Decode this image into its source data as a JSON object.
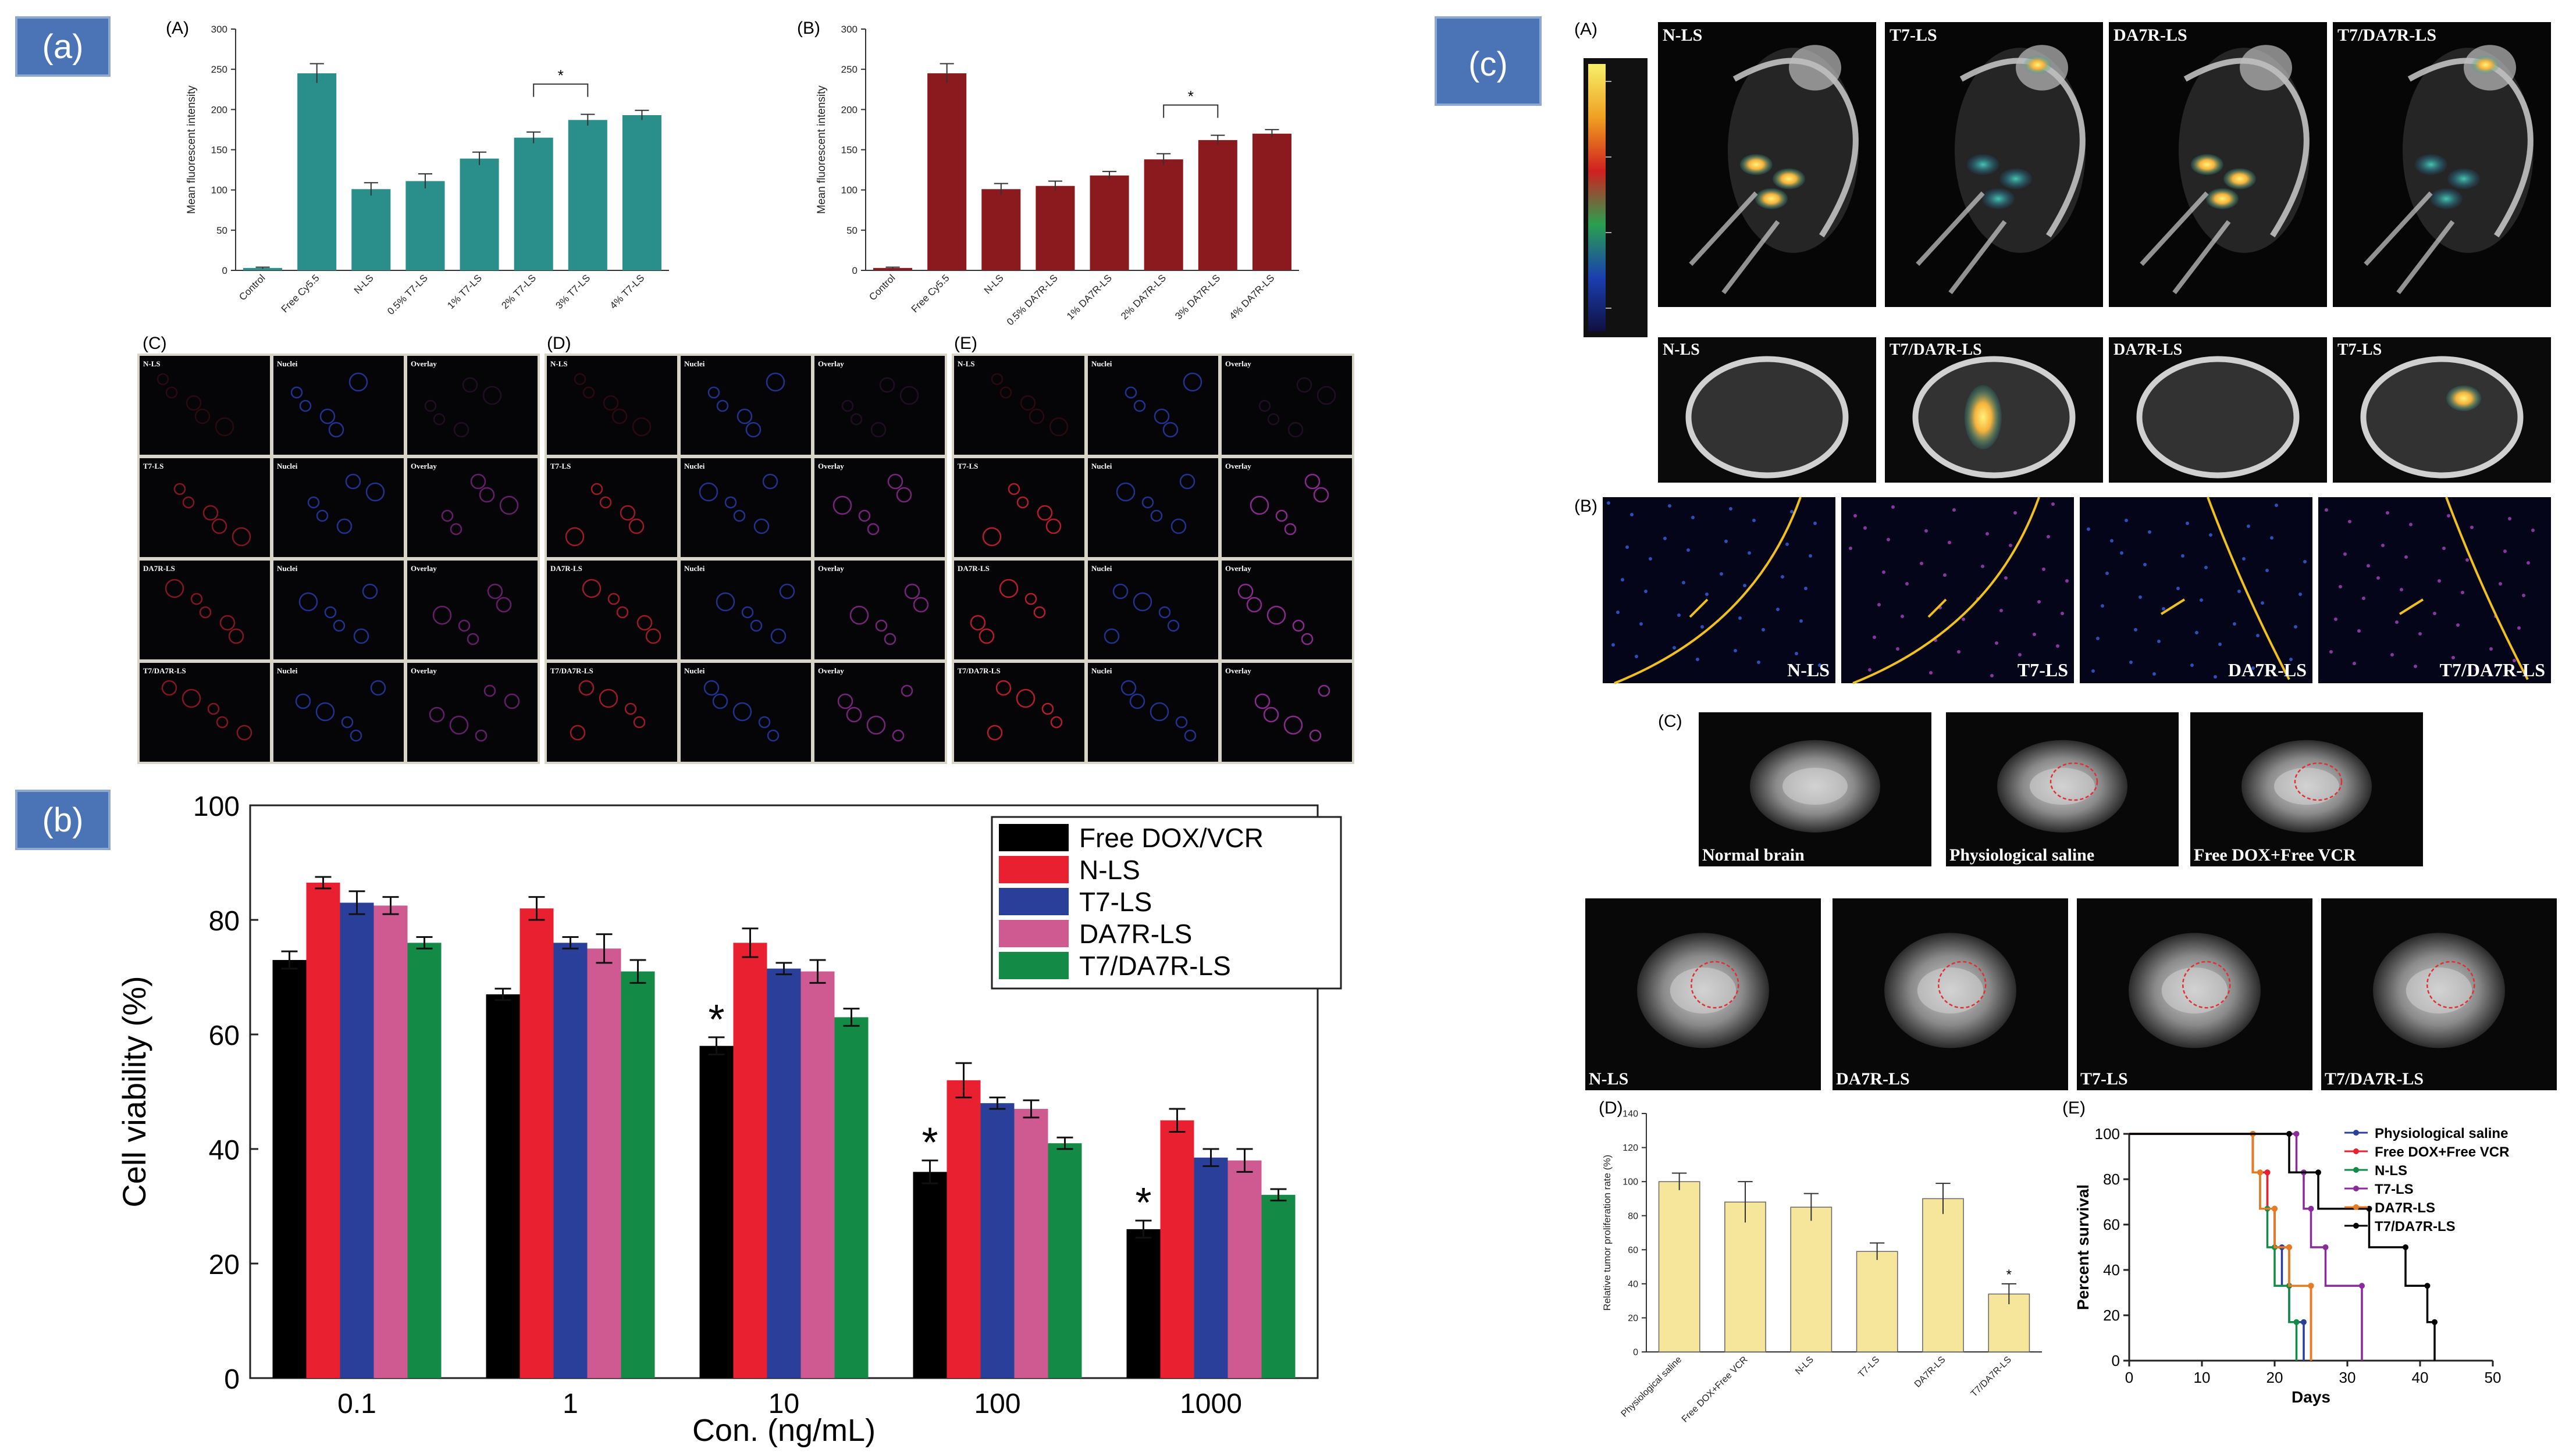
{
  "panel_badges": {
    "a": "(a)",
    "b": "(b)",
    "c": "(c)"
  },
  "panel_a": {
    "letter_A": "(A)",
    "letter_B": "(B)",
    "letter_C": "(C)",
    "letter_D": "(D)",
    "letter_E": "(E)",
    "micro_labels": [
      "N-LS",
      "Nuclei",
      "Overlay",
      "T7-LS",
      "DA7R-LS",
      "T7/DA7R-LS"
    ]
  },
  "panel_c": {
    "letter_A": "(A)",
    "letter_B": "(B)",
    "letter_C": "(C)",
    "letter_D": "(D)",
    "letter_E": "(E)",
    "ct_row1": [
      "N-LS",
      "T7-LS",
      "DA7R-LS",
      "T7/DA7R-LS"
    ],
    "ct_row2": [
      "N-LS",
      "T7/DA7R-LS",
      "DA7R-LS",
      "T7-LS"
    ],
    "fluor_row": [
      "N-LS",
      "T7-LS",
      "DA7R-LS",
      "T7/DA7R-LS"
    ],
    "mri_row1": [
      "Normal brain",
      "Physiological saline",
      "Free DOX+Free VCR"
    ],
    "mri_row2": [
      "N-LS",
      "DA7R-LS",
      "T7-LS",
      "T7/DA7R-LS"
    ]
  },
  "chart_data": [
    {
      "id": "aA",
      "type": "bar",
      "ylabel": "Mean fluorescent intensity",
      "ylim": [
        0,
        300
      ],
      "yticks": [
        0,
        50,
        100,
        150,
        200,
        250,
        300
      ],
      "categories": [
        "Control",
        "Free Cy5.5",
        "N-LS",
        "0.5% T7-LS",
        "1% T7-LS",
        "2% T7-LS",
        "3% T7-LS",
        "4% T7-LS"
      ],
      "values": [
        3,
        245,
        101,
        111,
        139,
        165,
        187,
        193
      ],
      "errors": [
        1,
        12,
        8,
        9,
        8,
        7,
        7,
        6
      ],
      "color": "#2a8f8a",
      "significance": {
        "from": 5,
        "to": 6,
        "label": "*"
      }
    },
    {
      "id": "aB",
      "type": "bar",
      "ylabel": "Mean fluorescent intensity",
      "ylim": [
        0,
        300
      ],
      "yticks": [
        0,
        50,
        100,
        150,
        200,
        250,
        300
      ],
      "categories": [
        "Control",
        "Free Cy5.5",
        "N-LS",
        "0.5% DA7R-LS",
        "1% DA7R-LS",
        "2% DA7R-LS",
        "3% DA7R-LS",
        "4% DA7R-LS"
      ],
      "values": [
        3,
        245,
        101,
        105,
        118,
        138,
        162,
        170
      ],
      "errors": [
        1,
        12,
        7,
        6,
        5,
        7,
        6,
        5
      ],
      "color": "#8b1a1e",
      "significance": {
        "from": 5,
        "to": 6,
        "label": "*"
      }
    },
    {
      "id": "b",
      "type": "bar",
      "ylabel": "Cell viability (%)",
      "xlabel": "Con. (ng/mL)",
      "ylim": [
        0,
        100
      ],
      "yticks": [
        0,
        20,
        40,
        60,
        80,
        100
      ],
      "categories": [
        "0.1",
        "1",
        "10",
        "100",
        "1000"
      ],
      "legend_position": "top-right",
      "series": [
        {
          "name": "Free DOX/VCR",
          "color": "#000000",
          "values": [
            73,
            67,
            58,
            36,
            26
          ],
          "errors": [
            1.5,
            1,
            1.5,
            2,
            1.5
          ]
        },
        {
          "name": "N-LS",
          "color": "#e8202f",
          "values": [
            86.5,
            82,
            76,
            52,
            45
          ],
          "errors": [
            1,
            2,
            2.5,
            3,
            2
          ]
        },
        {
          "name": "T7-LS",
          "color": "#2a3f9a",
          "values": [
            83,
            76,
            71.5,
            48,
            38.5
          ],
          "errors": [
            2,
            1,
            1,
            1,
            1.5
          ]
        },
        {
          "name": "DA7R-LS",
          "color": "#cf5a92",
          "values": [
            82.5,
            75,
            71,
            47,
            38
          ],
          "errors": [
            1.5,
            2.5,
            2,
            1.5,
            2
          ]
        },
        {
          "name": "T7/DA7R-LS",
          "color": "#138a46",
          "values": [
            76,
            71,
            63,
            41,
            32
          ],
          "errors": [
            1,
            2,
            1.5,
            1,
            1
          ]
        }
      ],
      "stars": [
        {
          "category": 2,
          "series": 0,
          "label": "*"
        },
        {
          "category": 3,
          "series": 0,
          "label": "*"
        },
        {
          "category": 4,
          "series": 0,
          "label": "*"
        }
      ]
    },
    {
      "id": "cD",
      "type": "bar",
      "ylabel": "Relative tumor proliferation rate (%)",
      "ylim": [
        0,
        140
      ],
      "yticks": [
        0,
        20,
        40,
        60,
        80,
        100,
        120,
        140
      ],
      "categories": [
        "Physiological saline",
        "Free DOX+Free VCR",
        "N-LS",
        "T7-LS",
        "DA7R-LS",
        "T7/DA7R-LS"
      ],
      "values": [
        100,
        88,
        85,
        59,
        90,
        34
      ],
      "errors": [
        5,
        12,
        8,
        5,
        9,
        6
      ],
      "color": "#f6e69c",
      "star": {
        "index": 5,
        "label": "*"
      }
    },
    {
      "id": "cE",
      "type": "line",
      "ylabel": "Percent survival",
      "xlabel": "Days",
      "xlim": [
        0,
        50
      ],
      "ylim": [
        0,
        100
      ],
      "xticks": [
        0,
        10,
        20,
        30,
        40,
        50
      ],
      "yticks": [
        0,
        20,
        40,
        60,
        80,
        100
      ],
      "legend_position": "top-right",
      "series": [
        {
          "name": "Physiological saline",
          "color": "#2a3f9a",
          "points": [
            [
              0,
              100
            ],
            [
              17,
              100
            ],
            [
              17,
              83
            ],
            [
              19,
              83
            ],
            [
              19,
              67
            ],
            [
              20,
              67
            ],
            [
              20,
              50
            ],
            [
              21,
              50
            ],
            [
              21,
              33
            ],
            [
              22,
              33
            ],
            [
              22,
              17
            ],
            [
              24,
              17
            ],
            [
              24,
              0
            ]
          ]
        },
        {
          "name": "Free DOX+Free VCR",
          "color": "#e8202f",
          "points": [
            [
              0,
              100
            ],
            [
              17,
              100
            ],
            [
              17,
              83
            ],
            [
              19,
              83
            ],
            [
              19,
              67
            ],
            [
              20,
              67
            ],
            [
              20,
              50
            ],
            [
              22,
              50
            ],
            [
              22,
              33
            ],
            [
              25,
              33
            ],
            [
              25,
              0
            ]
          ]
        },
        {
          "name": "N-LS",
          "color": "#138a46",
          "points": [
            [
              0,
              100
            ],
            [
              17,
              100
            ],
            [
              17,
              83
            ],
            [
              18,
              83
            ],
            [
              18,
              67
            ],
            [
              19,
              67
            ],
            [
              19,
              50
            ],
            [
              20,
              50
            ],
            [
              20,
              33
            ],
            [
              22,
              33
            ],
            [
              22,
              17
            ],
            [
              23,
              17
            ],
            [
              23,
              0
            ]
          ]
        },
        {
          "name": "T7-LS",
          "color": "#8b2a9a",
          "points": [
            [
              0,
              100
            ],
            [
              23,
              100
            ],
            [
              23,
              83
            ],
            [
              24,
              83
            ],
            [
              24,
              67
            ],
            [
              25,
              67
            ],
            [
              25,
              50
            ],
            [
              27,
              50
            ],
            [
              27,
              33
            ],
            [
              32,
              33
            ],
            [
              32,
              0
            ]
          ]
        },
        {
          "name": "DA7R-LS",
          "color": "#e87a20",
          "points": [
            [
              0,
              100
            ],
            [
              17,
              100
            ],
            [
              17,
              83
            ],
            [
              18,
              83
            ],
            [
              18,
              67
            ],
            [
              20,
              67
            ],
            [
              20,
              50
            ],
            [
              22,
              50
            ],
            [
              22,
              33
            ],
            [
              25,
              33
            ],
            [
              25,
              0
            ]
          ]
        },
        {
          "name": "T7/DA7R-LS",
          "color": "#000000",
          "points": [
            [
              0,
              100
            ],
            [
              22,
              100
            ],
            [
              22,
              83
            ],
            [
              26,
              83
            ],
            [
              26,
              67
            ],
            [
              33,
              67
            ],
            [
              33,
              50
            ],
            [
              38,
              50
            ],
            [
              38,
              33
            ],
            [
              41,
              33
            ],
            [
              41,
              17
            ],
            [
              42,
              17
            ],
            [
              42,
              0
            ]
          ]
        }
      ]
    }
  ]
}
